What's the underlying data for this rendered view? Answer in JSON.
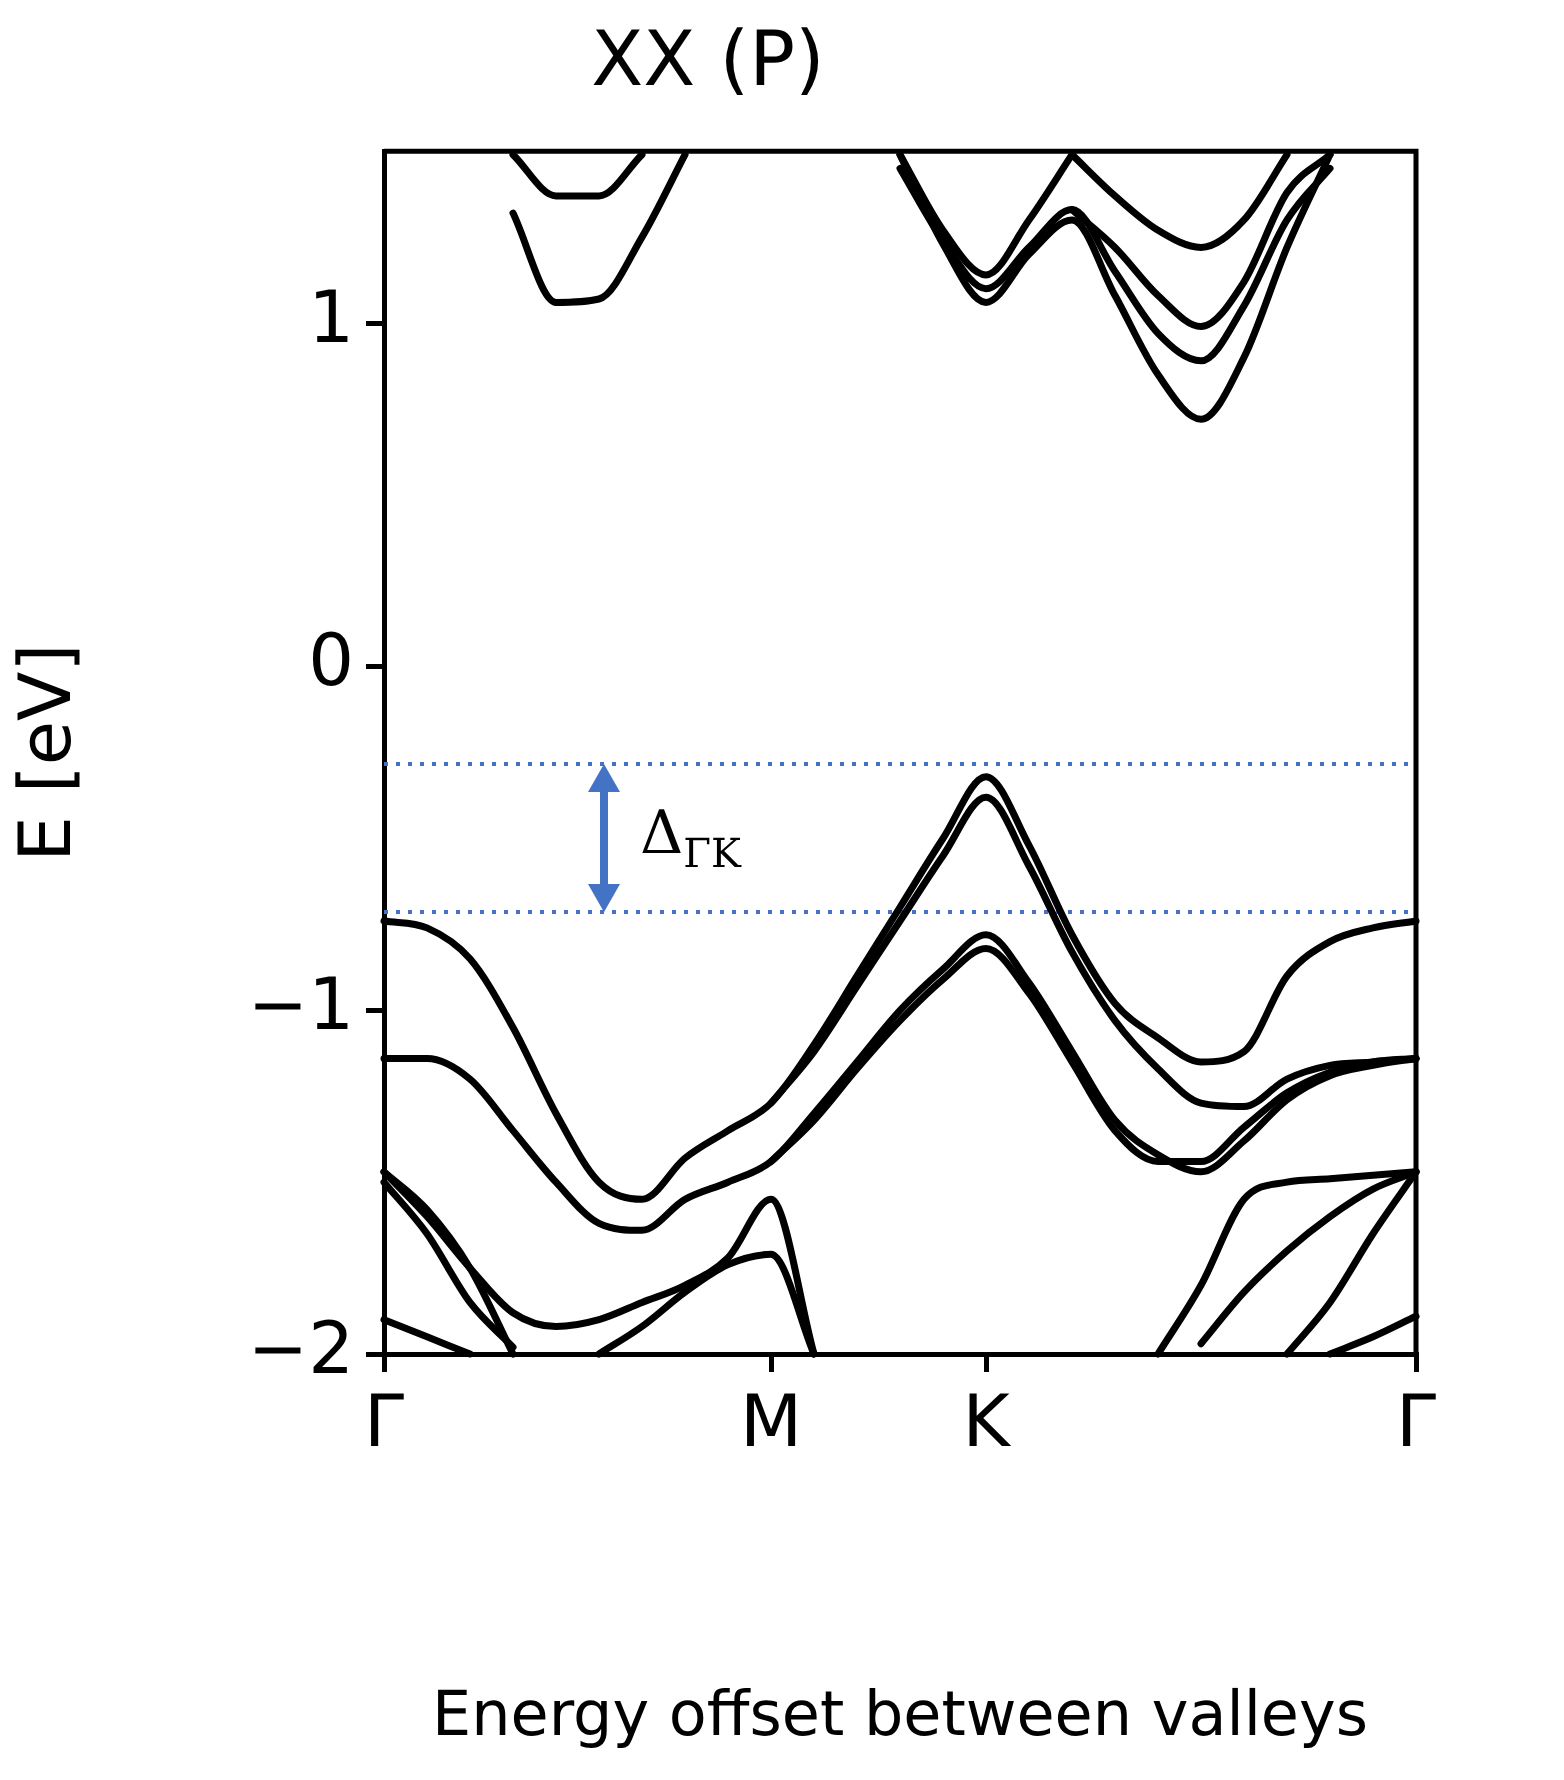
{
  "chart_data": {
    "type": "line",
    "title": "XX (P)",
    "xlabel": "Energy offset between valleys",
    "ylabel": "E [eV]",
    "categories": [
      "Γ",
      null,
      null,
      null,
      null,
      null,
      null,
      null,
      null,
      "M",
      null,
      null,
      null,
      null,
      "K",
      null,
      null,
      null,
      null,
      null,
      null,
      null,
      null,
      null,
      "Γ"
    ],
    "ylim": [
      -2,
      1.5
    ],
    "yticks": [
      {
        "value": -2,
        "label": "−2"
      },
      {
        "value": -1,
        "label": "−1"
      },
      0,
      1
    ],
    "grid": false,
    "legend": false,
    "marker": "none",
    "line_style": "solid",
    "ref_lines": [
      {
        "axis": "y",
        "value": -0.283,
        "color": "#4472c4",
        "line_style": "dotted"
      },
      {
        "axis": "y",
        "value": -0.714,
        "color": "#4472c4",
        "line_style": "dotted"
      }
    ],
    "annotations": [
      "Δ$_{ΓK}$"
    ],
    "series": [
      {
        "color": "#000000",
        "values": [
          null,
          null,
          null,
          1.32,
          1.06,
          1.07,
          1.25,
          1.49,
          null,
          null,
          null,
          null,
          null,
          null,
          null,
          null,
          null,
          null,
          null,
          null,
          null,
          null,
          null,
          null,
          null
        ]
      },
      {
        "color": "#000000",
        "values": [
          null,
          null,
          null,
          1.49,
          1.37,
          1.37,
          1.49,
          null,
          null,
          null,
          null,
          null,
          null,
          null,
          null,
          null,
          null,
          null,
          null,
          null,
          null,
          null,
          null,
          null,
          null
        ]
      },
      {
        "color": "#000000",
        "values": [
          null,
          null,
          null,
          null,
          null,
          null,
          null,
          null,
          null,
          null,
          null,
          null,
          1.49,
          1.23,
          1.06,
          1.2,
          1.3,
          1.08,
          0.85,
          0.72,
          0.9,
          1.22,
          1.49,
          null,
          null
        ]
      },
      {
        "color": "#000000",
        "values": [
          null,
          null,
          null,
          null,
          null,
          null,
          null,
          null,
          null,
          null,
          null,
          null,
          1.45,
          1.24,
          1.1,
          1.22,
          1.33,
          1.15,
          0.97,
          0.89,
          1.05,
          1.3,
          1.45,
          null,
          null
        ]
      },
      {
        "color": "#000000",
        "values": [
          null,
          null,
          null,
          null,
          null,
          null,
          null,
          null,
          null,
          null,
          null,
          null,
          1.49,
          1.27,
          1.14,
          1.3,
          1.49,
          null,
          null,
          null,
          null,
          null,
          null,
          null,
          null
        ]
      },
      {
        "color": "#000000",
        "values": [
          null,
          null,
          null,
          null,
          null,
          null,
          null,
          null,
          null,
          null,
          null,
          null,
          null,
          null,
          null,
          null,
          1.49,
          1.37,
          1.27,
          1.22,
          1.3,
          1.49,
          null,
          null,
          null
        ]
      },
      {
        "color": "#000000",
        "values": [
          null,
          null,
          null,
          null,
          null,
          null,
          null,
          null,
          null,
          null,
          null,
          null,
          null,
          null,
          null,
          null,
          1.33,
          1.22,
          1.08,
          0.99,
          1.12,
          1.38,
          1.49,
          null,
          null
        ]
      },
      {
        "color": "#000000",
        "values": [
          -0.74,
          -0.76,
          -0.85,
          -1.05,
          -1.3,
          -1.5,
          -1.55,
          -1.43,
          -1.35,
          -1.27,
          -1.1,
          -0.9,
          -0.7,
          -0.5,
          -0.32,
          -0.52,
          -0.78,
          -0.98,
          -1.08,
          -1.15,
          -1.12,
          -0.9,
          -0.8,
          -0.76,
          -0.74
        ]
      },
      {
        "color": "#000000",
        "values": [
          null,
          null,
          null,
          null,
          null,
          null,
          null,
          null,
          null,
          -1.27,
          -1.12,
          -0.93,
          -0.74,
          -0.55,
          -0.38,
          -0.58,
          -0.83,
          -1.03,
          -1.17,
          -1.27,
          -1.28,
          -1.2,
          -1.16,
          -1.15,
          -1.14
        ]
      },
      {
        "color": "#000000",
        "values": [
          -1.14,
          -1.14,
          -1.2,
          -1.35,
          -1.5,
          -1.62,
          -1.64,
          -1.55,
          -1.5,
          -1.44,
          -1.3,
          -1.15,
          -1.0,
          -0.88,
          -0.78,
          -0.92,
          -1.12,
          -1.32,
          -1.42,
          -1.47,
          -1.38,
          -1.26,
          -1.19,
          -1.16,
          -1.14
        ]
      },
      {
        "color": "#000000",
        "values": [
          null,
          null,
          null,
          null,
          null,
          null,
          null,
          null,
          null,
          -1.44,
          -1.32,
          -1.17,
          -1.03,
          -0.91,
          -0.82,
          -0.95,
          -1.15,
          -1.35,
          -1.44,
          -1.44,
          -1.34,
          -1.24,
          -1.18,
          -1.15,
          -1.14
        ]
      },
      {
        "color": "#000000",
        "values": [
          -1.47,
          -1.58,
          -1.75,
          -2.0,
          null,
          null,
          null,
          null,
          null,
          null,
          null,
          null,
          null,
          null,
          null,
          null,
          null,
          null,
          null,
          null,
          null,
          null,
          null,
          null,
          null
        ]
      },
      {
        "color": "#000000",
        "values": [
          -1.47,
          -1.6,
          -1.75,
          -1.88,
          -1.92,
          -1.9,
          -1.85,
          -1.8,
          -1.72,
          -1.55,
          -2.0,
          null,
          null,
          null,
          null,
          null,
          null,
          null,
          null,
          null,
          null,
          null,
          null,
          null,
          null
        ]
      },
      {
        "color": "#000000",
        "values": [
          -1.5,
          -1.65,
          -1.85,
          -1.98,
          null,
          null,
          null,
          null,
          null,
          null,
          null,
          null,
          null,
          null,
          null,
          null,
          null,
          null,
          null,
          null,
          null,
          null,
          null,
          null,
          null
        ]
      },
      {
        "color": "#000000",
        "values": [
          null,
          null,
          null,
          null,
          null,
          -2.0,
          -1.92,
          -1.82,
          -1.74,
          -1.71,
          -2.0,
          null,
          null,
          null,
          null,
          null,
          null,
          null,
          null,
          null,
          null,
          null,
          null,
          null,
          null
        ]
      },
      {
        "color": "#000000",
        "values": [
          null,
          null,
          null,
          null,
          null,
          null,
          null,
          null,
          null,
          null,
          null,
          null,
          null,
          null,
          null,
          null,
          null,
          null,
          -2.0,
          -1.8,
          -1.55,
          -1.5,
          -1.49,
          -1.48,
          -1.47
        ]
      },
      {
        "color": "#000000",
        "values": [
          null,
          null,
          null,
          null,
          null,
          null,
          null,
          null,
          null,
          null,
          null,
          null,
          null,
          null,
          null,
          null,
          null,
          null,
          null,
          -1.97,
          -1.82,
          -1.7,
          -1.6,
          -1.52,
          -1.47
        ]
      },
      {
        "color": "#000000",
        "values": [
          null,
          null,
          null,
          null,
          null,
          null,
          null,
          null,
          null,
          null,
          null,
          null,
          null,
          null,
          null,
          null,
          null,
          null,
          null,
          null,
          null,
          -2.0,
          -1.85,
          -1.65,
          -1.47
        ]
      },
      {
        "color": "#000000",
        "values": [
          -1.9,
          -1.95,
          -2.0,
          null,
          null,
          null,
          null,
          null,
          null,
          null,
          null,
          null,
          null,
          null,
          null,
          null,
          null,
          null,
          null,
          null,
          null,
          null,
          null,
          null,
          null
        ]
      },
      {
        "color": "#000000",
        "values": [
          null,
          null,
          null,
          null,
          null,
          null,
          null,
          null,
          null,
          null,
          null,
          null,
          null,
          null,
          null,
          null,
          null,
          null,
          null,
          null,
          null,
          null,
          -2.0,
          -1.95,
          -1.89
        ]
      }
    ]
  }
}
